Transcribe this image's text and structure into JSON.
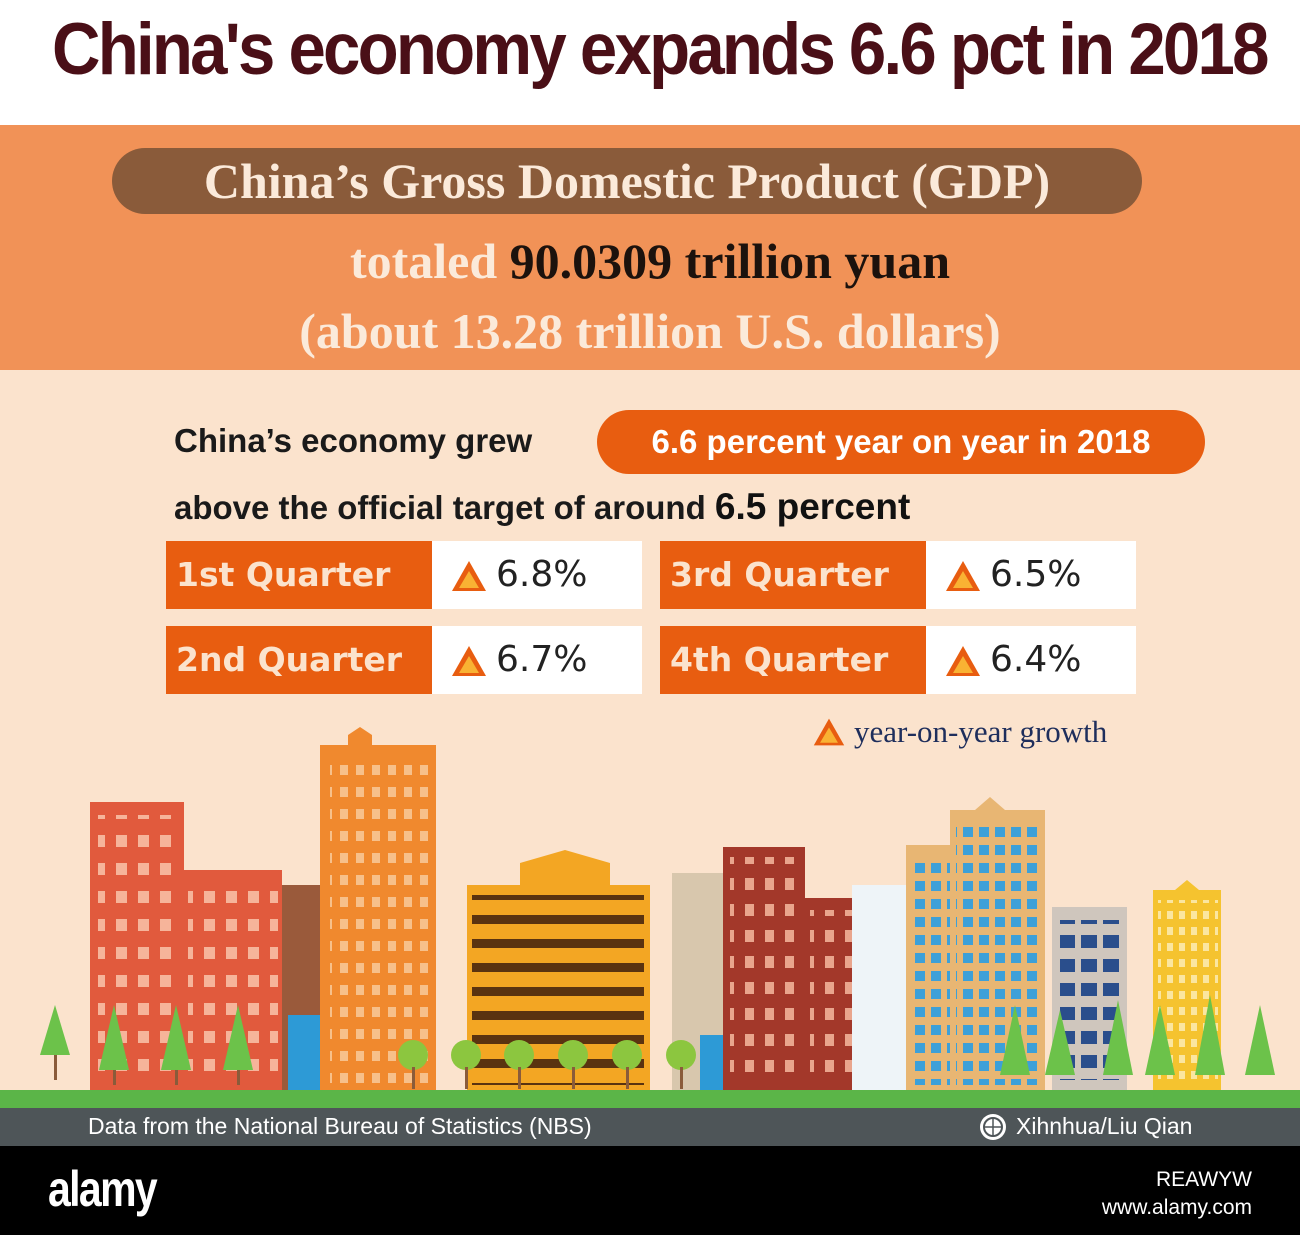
{
  "headline": "China's economy expands 6.6 pct in 2018",
  "gdp": {
    "title": "China’s Gross Domestic Product (GDP)",
    "totaled_prefix": "totaled",
    "totaled_value": "90.0309 trillion yuan",
    "usd_line": "(about 13.28 trillion U.S. dollars)"
  },
  "growth": {
    "lead": "China’s economy grew",
    "highlight": "6.6 percent year on year in 2018",
    "target_prefix": "above the official target of around",
    "target_value": "6.5 percent"
  },
  "quarters": [
    {
      "label": "1st Quarter",
      "value": "6.8%"
    },
    {
      "label": "2nd Quarter",
      "value": "6.7%"
    },
    {
      "label": "3rd Quarter",
      "value": "6.5%"
    },
    {
      "label": "4th Quarter",
      "value": "6.4%"
    }
  ],
  "legend": {
    "text": "year-on-year growth",
    "icon": "triangle-up-icon"
  },
  "footer": {
    "source": "Data from the National Bureau of Statistics (NBS)",
    "credit": "Xihnhua/Liu Qian",
    "logo_icon": "xinhua-globe-icon"
  },
  "stock": {
    "logo": "alamy",
    "image_id": "REAWYW",
    "url": "www.alamy.com"
  },
  "colors": {
    "headline": "#4a0f17",
    "band": "#f19257",
    "pill_brown": "#8a5b3a",
    "accent_orange": "#e85d10",
    "background": "#fbe3cd",
    "ground": "#5bb548"
  }
}
